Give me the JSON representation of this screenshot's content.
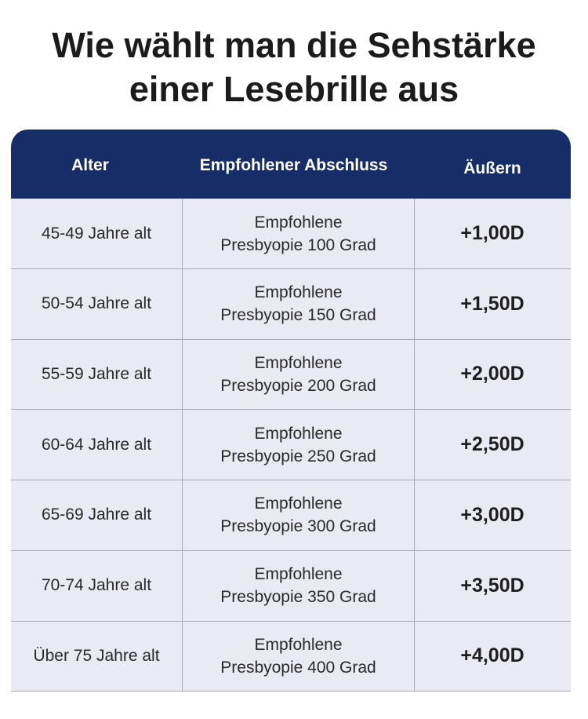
{
  "title": [
    "Wie wählt man die Sehstärke",
    "einer Lesebrille aus"
  ],
  "table": {
    "headers": [
      "Alter",
      "Empfohlener Abschluss",
      "Äußern"
    ],
    "rows": [
      [
        "45-49 Jahre alt",
        [
          "Empfohlene",
          "Presbyopie 100 Grad"
        ],
        "+1,00D"
      ],
      [
        "50-54 Jahre alt",
        [
          "Empfohlene",
          "Presbyopie 150 Grad"
        ],
        "+1,50D"
      ],
      [
        "55-59 Jahre alt",
        [
          "Empfohlene",
          "Presbyopie 200 Grad"
        ],
        "+2,00D"
      ],
      [
        "60-64 Jahre alt",
        [
          "Empfohlene",
          "Presbyopie 250 Grad"
        ],
        "+2,50D"
      ],
      [
        "65-69 Jahre alt",
        [
          "Empfohlene",
          "Presbyopie 300 Grad"
        ],
        "+3,00D"
      ],
      [
        "70-74 Jahre alt",
        [
          "Empfohlene",
          "Presbyopie 350 Grad"
        ],
        "+3,50D"
      ],
      [
        "Über 75 Jahre alt",
        [
          "Empfohlene",
          "Presbyopie 400 Grad"
        ],
        "+4,00D"
      ]
    ]
  }
}
